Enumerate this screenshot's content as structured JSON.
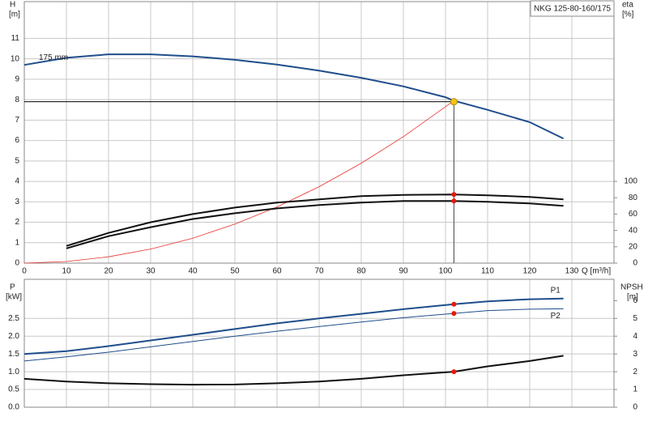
{
  "chart_data": [
    {
      "type": "line",
      "model": "NKG 125-80-160/175",
      "ylabel": "H",
      "yunit": "[m]",
      "y2label": "eta",
      "y2unit": "[%]",
      "xlabel": "Q [m³/h]",
      "xlim": [
        0,
        140
      ],
      "xticks": [
        0,
        10,
        20,
        30,
        40,
        50,
        60,
        70,
        80,
        90,
        100,
        110,
        120,
        130
      ],
      "ylim": [
        0,
        12.8
      ],
      "yticks": [
        0,
        1,
        2,
        3,
        4,
        5,
        6,
        7,
        8,
        9,
        10,
        11
      ],
      "y2lim": [
        0,
        320
      ],
      "y2ticks": [
        0,
        20,
        40,
        60,
        80,
        100
      ],
      "grid": true,
      "show_xtick_labels": true,
      "series": [
        {
          "name": "175 mm",
          "label_position": "start",
          "color": "#1f4e8c",
          "width": 2,
          "x": [
            0,
            10,
            20,
            30,
            40,
            50,
            60,
            70,
            80,
            90,
            100,
            102,
            110,
            120,
            128
          ],
          "values": [
            9.7,
            10.05,
            10.22,
            10.22,
            10.12,
            9.95,
            9.72,
            9.42,
            9.07,
            8.65,
            8.12,
            7.95,
            7.5,
            6.9,
            6.1
          ]
        },
        {
          "color": "#e8322c",
          "width": 0.8,
          "x": [
            0,
            10,
            20,
            30,
            40,
            50,
            60,
            70,
            80,
            90,
            102
          ],
          "values": [
            0,
            0.08,
            0.31,
            0.69,
            1.22,
            1.91,
            2.75,
            3.74,
            4.89,
            6.19,
            7.95
          ]
        },
        {
          "color": "#111111",
          "width": 2,
          "axis": "y2",
          "x": [
            10,
            20,
            30,
            40,
            50,
            60,
            70,
            80,
            90,
            102,
            110,
            120,
            128
          ],
          "values": [
            21,
            37,
            50,
            60,
            68,
            74,
            78,
            82,
            83.5,
            84,
            83,
            81,
            78
          ]
        },
        {
          "color": "#111111",
          "width": 2,
          "axis": "y2",
          "x": [
            10,
            20,
            30,
            40,
            50,
            60,
            70,
            80,
            90,
            102,
            110,
            120,
            128
          ],
          "values": [
            18,
            33,
            44,
            54,
            61,
            67,
            71,
            74,
            76,
            76,
            75,
            73,
            70
          ]
        }
      ],
      "duty_point": {
        "x": 102,
        "y": 7.9,
        "color": "#f5c518"
      },
      "operating_points": [
        {
          "x": 102,
          "y": 84,
          "axis": "y2",
          "color": "#e8180c"
        },
        {
          "x": 102,
          "y": 76,
          "axis": "y2",
          "color": "#e8180c"
        }
      ]
    },
    {
      "type": "line",
      "ylabel": "P",
      "yunit": "[kW]",
      "y2label": "NPSH",
      "y2unit": "[m]",
      "xlim": [
        0,
        140
      ],
      "xticks": [
        0,
        10,
        20,
        30,
        40,
        50,
        60,
        70,
        80,
        90,
        100,
        110,
        120,
        130
      ],
      "ylim": [
        0,
        3.6
      ],
      "yticks": [
        {
          "value": 0,
          "label": "0.0"
        },
        0.5,
        {
          "value": 1,
          "label": "1.0"
        },
        1.5,
        {
          "value": 2,
          "label": "2.0"
        },
        2.5
      ],
      "y2lim": [
        0,
        7.2
      ],
      "y2ticks": [
        0,
        1,
        2,
        3,
        4,
        5,
        6
      ],
      "grid": true,
      "show_xtick_labels": false,
      "series": [
        {
          "name": "P1",
          "label_position": "end-above",
          "color": "#1f4e8c",
          "width": 2,
          "x": [
            0,
            10,
            20,
            30,
            40,
            50,
            60,
            70,
            80,
            90,
            102,
            110,
            120,
            128
          ],
          "values": [
            1.5,
            1.58,
            1.72,
            1.88,
            2.04,
            2.2,
            2.36,
            2.5,
            2.63,
            2.76,
            2.9,
            2.98,
            3.04,
            3.06
          ]
        },
        {
          "name": "P2",
          "label_position": "end-below",
          "color": "#1f4e8c",
          "width": 1,
          "x": [
            0,
            10,
            20,
            30,
            40,
            50,
            60,
            70,
            80,
            90,
            102,
            110,
            120,
            128
          ],
          "values": [
            1.3,
            1.42,
            1.55,
            1.7,
            1.85,
            2.0,
            2.14,
            2.27,
            2.4,
            2.52,
            2.64,
            2.72,
            2.76,
            2.77
          ]
        },
        {
          "color": "#111111",
          "width": 2,
          "axis": "y2",
          "x": [
            0,
            10,
            20,
            30,
            40,
            50,
            60,
            70,
            80,
            90,
            102,
            110,
            120,
            128
          ],
          "values": [
            1.6,
            1.45,
            1.35,
            1.3,
            1.27,
            1.28,
            1.35,
            1.45,
            1.6,
            1.8,
            2.0,
            2.3,
            2.6,
            2.9
          ]
        }
      ],
      "operating_points": [
        {
          "x": 102,
          "y": 2.9,
          "color": "#e8180c"
        },
        {
          "x": 102,
          "y": 2.64,
          "color": "#e8180c"
        },
        {
          "x": 102,
          "y": 2.0,
          "axis": "y2",
          "color": "#e8180c"
        }
      ]
    }
  ]
}
